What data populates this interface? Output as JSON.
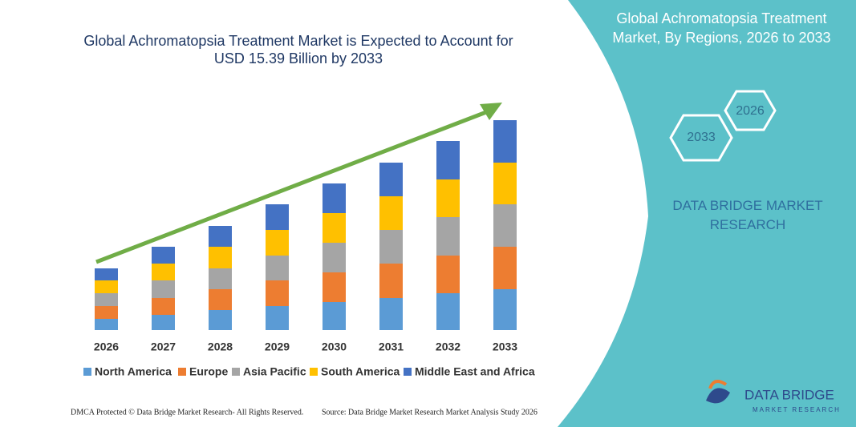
{
  "chart_data": {
    "type": "stacked-bar",
    "title": "Global Achromatopsia Treatment Market is Expected to Account for USD 15.39 Billion by 2033",
    "categories": [
      "2026",
      "2027",
      "2028",
      "2029",
      "2030",
      "2031",
      "2032",
      "2033"
    ],
    "series": [
      {
        "name": "North America",
        "color": "#5b9bd5",
        "values": [
          14,
          19,
          25,
          30,
          35,
          40,
          46,
          51
        ]
      },
      {
        "name": "Europe",
        "color": "#ed7d31",
        "values": [
          16,
          21,
          26,
          32,
          37,
          43,
          47,
          53
        ]
      },
      {
        "name": "Asia Pacific",
        "color": "#a5a5a5",
        "values": [
          16,
          22,
          26,
          31,
          37,
          42,
          48,
          53
        ]
      },
      {
        "name": "South America",
        "color": "#ffc000",
        "values": [
          16,
          21,
          27,
          32,
          37,
          42,
          47,
          52
        ]
      },
      {
        "name": "Middle East and Africa",
        "color": "#4472c4",
        "values": [
          15,
          21,
          26,
          32,
          37,
          42,
          48,
          53
        ]
      }
    ],
    "ylim": [
      0,
      262
    ]
  },
  "panel": {
    "title": "Global Achromatopsia Treatment Market, By Regions, 2026 to 2033",
    "hexagons": [
      "2026",
      "2033"
    ],
    "brand": "DATA BRIDGE MARKET RESEARCH"
  },
  "logo": {
    "name": "DATA BRIDGE",
    "tagline": "MARKET RESEARCH"
  },
  "footer": {
    "left": "DMCA Protected © Data Bridge Market Research- All Rights Reserved.",
    "right": "Source: Data Bridge Market Research Market Analysis Study 2026"
  }
}
